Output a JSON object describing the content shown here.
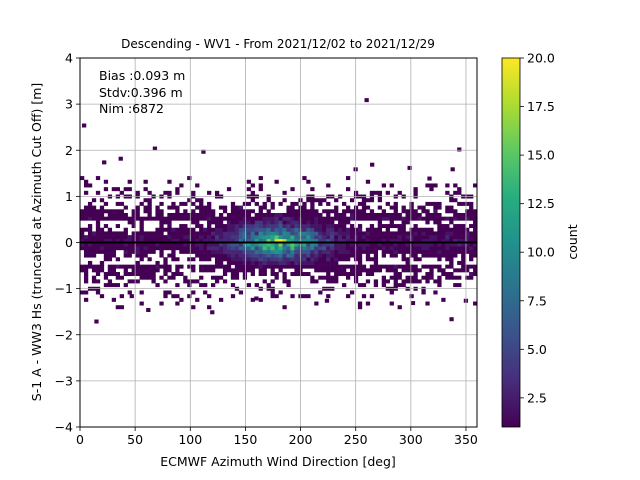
{
  "chart_data": {
    "type": "heatmap",
    "title": "Descending - WV1 - From 2021/12/02 to 2021/12/29",
    "xlabel": "ECMWF Azimuth Wind Direction [deg]",
    "ylabel": "S-1 A - WW3 Hs (truncated at Azimuth Cut Off) [m]",
    "xlim": [
      0,
      360
    ],
    "ylim": [
      -4,
      4
    ],
    "x_ticks": [
      "0",
      "50",
      "100",
      "150",
      "200",
      "250",
      "300",
      "350"
    ],
    "y_ticks": [
      "−4",
      "−3",
      "−2",
      "−1",
      "0",
      "1",
      "2",
      "3",
      "4"
    ],
    "grid": true,
    "zero_line": 0,
    "bin_width_x_deg": 3.6,
    "bin_width_y_m": 0.08,
    "stats": {
      "bias": "Bias :0.093 m",
      "stdv": "Stdv:0.396 m",
      "nim": "Nim :6872"
    },
    "colorbar": {
      "label": "count",
      "min": 1,
      "max": 20,
      "ticks": [
        "2.5",
        "5.0",
        "7.5",
        "10.0",
        "12.5",
        "15.0",
        "17.5",
        "20.0"
      ],
      "colormap": "viridis"
    },
    "outliers": [
      {
        "x": 1.8,
        "y": 2.5
      },
      {
        "x": 66,
        "y": 2.0
      },
      {
        "x": 110,
        "y": 1.93
      },
      {
        "x": 258,
        "y": 3.05
      },
      {
        "x": 342,
        "y": 1.98
      },
      {
        "x": 13,
        "y": -1.75
      },
      {
        "x": 60,
        "y": -1.5
      },
      {
        "x": 118,
        "y": -1.55
      },
      {
        "x": 335,
        "y": -1.7
      },
      {
        "x": 20,
        "y": 1.7
      },
      {
        "x": 35,
        "y": 1.78
      },
      {
        "x": 248,
        "y": 1.55
      },
      {
        "x": 263,
        "y": 1.65
      },
      {
        "x": 297,
        "y": 1.58
      },
      {
        "x": 336,
        "y": 1.55
      },
      {
        "x": 315,
        "y": 1.35
      },
      {
        "x": 45,
        "y": -1.2
      },
      {
        "x": 222,
        "y": -1.3
      },
      {
        "x": 300,
        "y": -1.35
      },
      {
        "x": 158,
        "y": -1.25
      },
      {
        "x": 348,
        "y": -1.3
      }
    ]
  }
}
